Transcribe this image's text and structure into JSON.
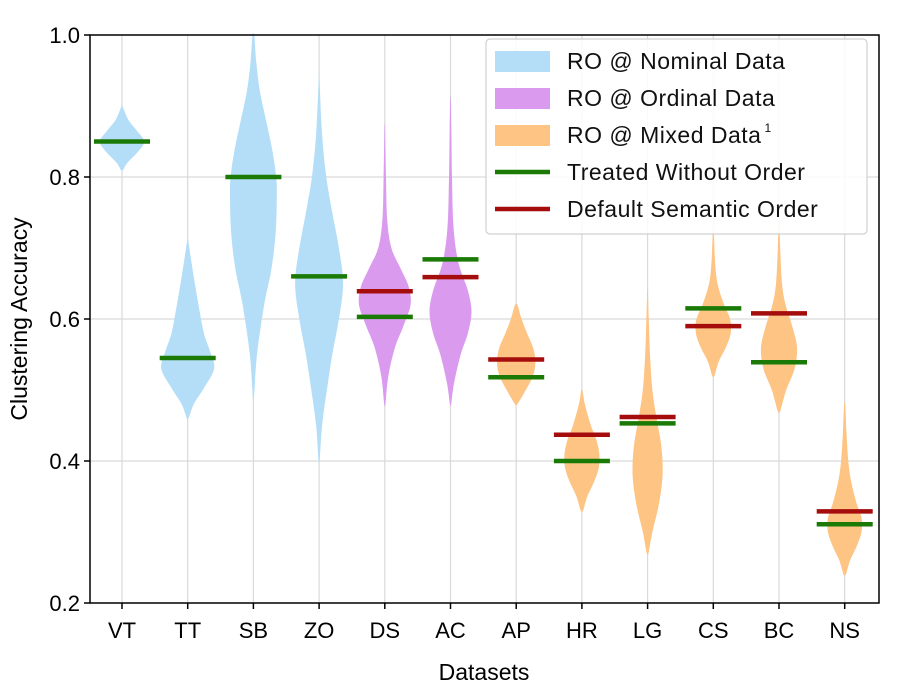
{
  "chart_data": {
    "type": "violin",
    "xlabel": "Datasets",
    "ylabel": "Clustering Accuracy",
    "ylim": [
      0.2,
      1.0
    ],
    "yticks": [
      "0.2",
      "0.4",
      "0.6",
      "0.8",
      "1.0"
    ],
    "grid": true,
    "categories": [
      "VT",
      "TT",
      "SB",
      "ZO",
      "DS",
      "AC",
      "AP",
      "HR",
      "LG",
      "CS",
      "BC",
      "NS"
    ],
    "groups": [
      "nominal",
      "nominal",
      "nominal",
      "nominal",
      "ordinal",
      "ordinal",
      "mixed",
      "mixed",
      "mixed",
      "mixed",
      "mixed",
      "mixed"
    ],
    "distributions": [
      {
        "min": 0.81,
        "max": 0.9,
        "shape": [
          [
            0.81,
            0.04
          ],
          [
            0.82,
            0.18
          ],
          [
            0.835,
            0.52
          ],
          [
            0.85,
            0.74
          ],
          [
            0.865,
            0.5
          ],
          [
            0.88,
            0.22
          ],
          [
            0.895,
            0.06
          ],
          [
            0.9,
            0.02
          ]
        ]
      },
      {
        "min": 0.46,
        "max": 0.71,
        "shape": [
          [
            0.46,
            0.03
          ],
          [
            0.48,
            0.2
          ],
          [
            0.5,
            0.5
          ],
          [
            0.53,
            0.88
          ],
          [
            0.555,
            0.74
          ],
          [
            0.58,
            0.54
          ],
          [
            0.62,
            0.36
          ],
          [
            0.66,
            0.2
          ],
          [
            0.69,
            0.09
          ],
          [
            0.71,
            0.02
          ]
        ]
      },
      {
        "min": 0.49,
        "max": 1.0,
        "shape": [
          [
            0.49,
            0.02
          ],
          [
            0.55,
            0.12
          ],
          [
            0.62,
            0.36
          ],
          [
            0.67,
            0.6
          ],
          [
            0.72,
            0.74
          ],
          [
            0.77,
            0.78
          ],
          [
            0.8,
            0.76
          ],
          [
            0.84,
            0.62
          ],
          [
            0.88,
            0.42
          ],
          [
            0.92,
            0.22
          ],
          [
            0.96,
            0.1
          ],
          [
            1.0,
            0.03
          ]
        ]
      },
      {
        "min": 0.4,
        "max": 0.94,
        "shape": [
          [
            0.4,
            0.02
          ],
          [
            0.45,
            0.1
          ],
          [
            0.5,
            0.26
          ],
          [
            0.55,
            0.44
          ],
          [
            0.6,
            0.66
          ],
          [
            0.65,
            0.8
          ],
          [
            0.7,
            0.66
          ],
          [
            0.75,
            0.44
          ],
          [
            0.8,
            0.24
          ],
          [
            0.86,
            0.1
          ],
          [
            0.94,
            0.01
          ]
        ]
      },
      {
        "min": 0.48,
        "max": 0.87,
        "shape": [
          [
            0.48,
            0.02
          ],
          [
            0.52,
            0.12
          ],
          [
            0.56,
            0.34
          ],
          [
            0.59,
            0.62
          ],
          [
            0.62,
            0.86
          ],
          [
            0.645,
            0.8
          ],
          [
            0.67,
            0.54
          ],
          [
            0.7,
            0.22
          ],
          [
            0.74,
            0.08
          ],
          [
            0.8,
            0.04
          ],
          [
            0.87,
            0.01
          ]
        ]
      },
      {
        "min": 0.48,
        "max": 0.91,
        "shape": [
          [
            0.48,
            0.02
          ],
          [
            0.51,
            0.12
          ],
          [
            0.55,
            0.34
          ],
          [
            0.58,
            0.58
          ],
          [
            0.61,
            0.7
          ],
          [
            0.64,
            0.58
          ],
          [
            0.68,
            0.26
          ],
          [
            0.73,
            0.1
          ],
          [
            0.8,
            0.05
          ],
          [
            0.86,
            0.03
          ],
          [
            0.91,
            0.01
          ]
        ]
      },
      {
        "min": 0.48,
        "max": 0.62,
        "shape": [
          [
            0.48,
            0.04
          ],
          [
            0.5,
            0.32
          ],
          [
            0.52,
            0.56
          ],
          [
            0.54,
            0.64
          ],
          [
            0.56,
            0.56
          ],
          [
            0.58,
            0.36
          ],
          [
            0.6,
            0.18
          ],
          [
            0.62,
            0.04
          ]
        ]
      },
      {
        "min": 0.33,
        "max": 0.5,
        "shape": [
          [
            0.33,
            0.04
          ],
          [
            0.35,
            0.18
          ],
          [
            0.37,
            0.4
          ],
          [
            0.39,
            0.56
          ],
          [
            0.41,
            0.58
          ],
          [
            0.43,
            0.48
          ],
          [
            0.45,
            0.3
          ],
          [
            0.48,
            0.1
          ],
          [
            0.5,
            0.02
          ]
        ]
      },
      {
        "min": 0.27,
        "max": 0.64,
        "shape": [
          [
            0.27,
            0.03
          ],
          [
            0.3,
            0.16
          ],
          [
            0.34,
            0.38
          ],
          [
            0.38,
            0.5
          ],
          [
            0.42,
            0.46
          ],
          [
            0.46,
            0.3
          ],
          [
            0.5,
            0.16
          ],
          [
            0.55,
            0.08
          ],
          [
            0.6,
            0.04
          ],
          [
            0.64,
            0.01
          ]
        ]
      },
      {
        "min": 0.52,
        "max": 0.72,
        "shape": [
          [
            0.52,
            0.04
          ],
          [
            0.54,
            0.18
          ],
          [
            0.56,
            0.42
          ],
          [
            0.58,
            0.58
          ],
          [
            0.6,
            0.56
          ],
          [
            0.62,
            0.36
          ],
          [
            0.65,
            0.14
          ],
          [
            0.68,
            0.06
          ],
          [
            0.72,
            0.02
          ]
        ]
      },
      {
        "min": 0.47,
        "max": 0.74,
        "shape": [
          [
            0.47,
            0.04
          ],
          [
            0.5,
            0.24
          ],
          [
            0.53,
            0.52
          ],
          [
            0.56,
            0.6
          ],
          [
            0.59,
            0.44
          ],
          [
            0.62,
            0.22
          ],
          [
            0.65,
            0.1
          ],
          [
            0.7,
            0.04
          ],
          [
            0.74,
            0.01
          ]
        ]
      },
      {
        "min": 0.24,
        "max": 0.48,
        "shape": [
          [
            0.24,
            0.04
          ],
          [
            0.26,
            0.18
          ],
          [
            0.28,
            0.4
          ],
          [
            0.3,
            0.56
          ],
          [
            0.32,
            0.56
          ],
          [
            0.34,
            0.4
          ],
          [
            0.37,
            0.22
          ],
          [
            0.4,
            0.12
          ],
          [
            0.44,
            0.06
          ],
          [
            0.48,
            0.02
          ]
        ]
      }
    ],
    "series": [
      {
        "name": "Treated Without Order",
        "color": "#1a7a05",
        "values": [
          0.85,
          0.545,
          0.8,
          0.66,
          0.603,
          0.684,
          0.518,
          0.4,
          0.453,
          0.615,
          0.539,
          0.311
        ]
      },
      {
        "name": "Default Semantic Order",
        "color": "#a50c0c",
        "values": [
          null,
          null,
          null,
          null,
          0.639,
          0.659,
          0.543,
          0.437,
          0.462,
          0.59,
          0.608,
          0.329
        ]
      }
    ],
    "legend": {
      "position": "top-right",
      "entries": [
        {
          "label": "RO @ Nominal  Data",
          "kind": "patch",
          "color": "#b4def8"
        },
        {
          "label": "RO @ Ordinal  Data",
          "kind": "patch",
          "color": "#da9bef"
        },
        {
          "label": "RO @ Mixed  Data",
          "sup": "1",
          "kind": "patch",
          "color": "#fdc484"
        },
        {
          "label": "Treated Without Order",
          "kind": "line",
          "color": "#1a7a05"
        },
        {
          "label": "Default Semantic Order",
          "kind": "line",
          "color": "#a50c0c"
        }
      ]
    },
    "colors": {
      "nominal": "#b4def8",
      "ordinal": "#da9bef",
      "mixed": "#fdc484"
    }
  }
}
